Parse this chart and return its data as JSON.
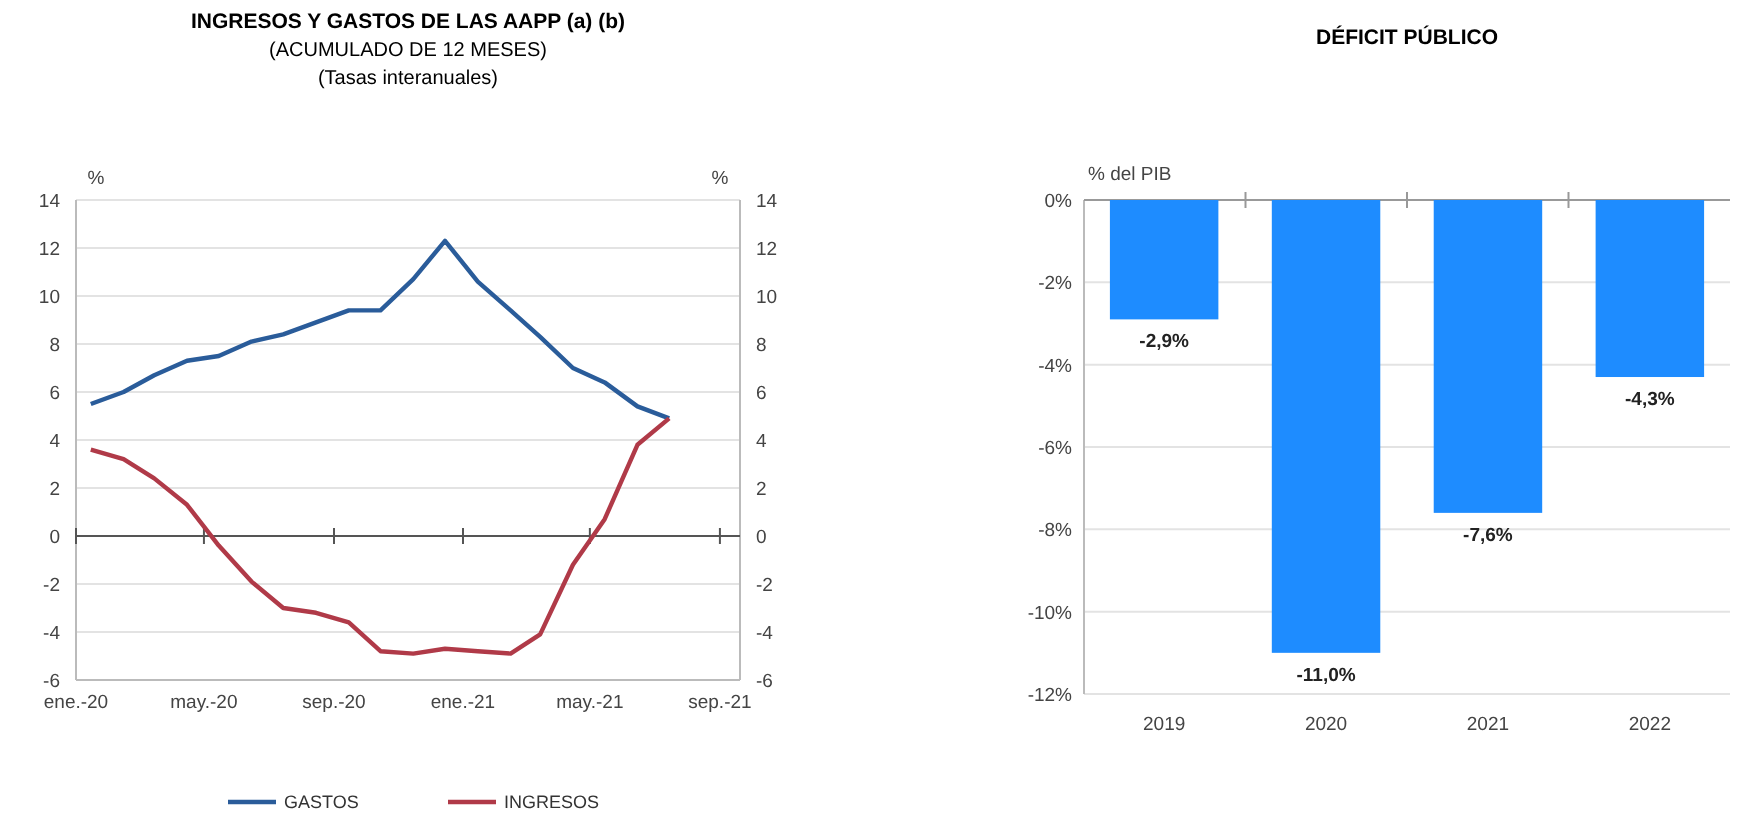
{
  "chart_data": [
    {
      "type": "line",
      "title": "INGRESOS Y GASTOS DE LAS AAPP (a) (b)",
      "subtitle": "(ACUMULADO DE 12 MESES)\n(Tasas interanuales)",
      "ylabel": "%",
      "y2label": "%",
      "x": [
        "2020-01-15",
        "2020-02-15",
        "2020-03-15",
        "2020-04-15",
        "2020-05-15",
        "2020-06-15",
        "2020-07-15",
        "2020-08-15",
        "2020-09-15",
        "2020-10-15",
        "2020-11-15",
        "2020-12-15",
        "2021-01-15",
        "2021-02-15",
        "2021-03-15",
        "2021-04-15",
        "2021-05-15",
        "2021-06-15",
        "2021-07-15"
      ],
      "series": [
        {
          "name": "GASTOS",
          "color": "#2a5c9a",
          "values": [
            5.5,
            6.0,
            6.7,
            7.3,
            7.5,
            8.1,
            8.4,
            8.9,
            9.4,
            9.4,
            10.7,
            12.3,
            10.6,
            9.4,
            8.3,
            7.0,
            6.4,
            5.4,
            4.9
          ]
        },
        {
          "name": "INGRESOS",
          "color": "#b03a48",
          "values": [
            3.6,
            3.2,
            2.4,
            1.3,
            -0.4,
            -1.9,
            -3.0,
            -3.2,
            -3.6,
            -4.8,
            -4.9,
            -4.7,
            -4.8,
            -4.9,
            -4.1,
            -1.2,
            0.7,
            3.8,
            4.9
          ]
        }
      ],
      "xlim": [
        "2020-01-01",
        "2021-09-20"
      ],
      "xticks": [
        {
          "value": "2020-01-01",
          "label": "ene.-20"
        },
        {
          "value": "2020-05-01",
          "label": "may.-20"
        },
        {
          "value": "2020-09-01",
          "label": "sep.-20"
        },
        {
          "value": "2021-01-01",
          "label": "ene.-21"
        },
        {
          "value": "2021-05-01",
          "label": "may.-21"
        },
        {
          "value": "2021-09-01",
          "label": "sep.-21"
        }
      ],
      "ylim": [
        -6,
        14
      ],
      "yticks": [
        -6,
        -4,
        -2,
        0,
        2,
        4,
        6,
        8,
        10,
        12,
        14
      ],
      "y2lim": [
        -6,
        14
      ],
      "y2ticks": [
        -6,
        -4,
        -2,
        0,
        2,
        4,
        6,
        8,
        10,
        12,
        14
      ],
      "grid": "y",
      "legend": "bottom",
      "marker": "none",
      "line_style": "solid"
    },
    {
      "type": "bar",
      "title": "DÉFICIT PÚBLICO",
      "ylabel": "% del PIB",
      "categories": [
        "2019",
        "2020",
        "2021",
        "2022"
      ],
      "values": [
        -2.9,
        -11.0,
        -7.6,
        -4.3
      ],
      "color": "#1e8cff",
      "value_labels": [
        "-2,9%",
        "-11,0%",
        "-7,6%",
        "-4,3%"
      ],
      "ylim": [
        -12,
        0
      ],
      "yticks": [
        {
          "value": -12,
          "label": "-12%"
        },
        {
          "value": -10,
          "label": "-10%"
        },
        {
          "value": -8,
          "label": "-8%"
        },
        {
          "value": -6,
          "label": "-6%"
        },
        {
          "value": -4,
          "label": "-4%"
        },
        {
          "value": -2,
          "label": "-2%"
        },
        {
          "value": 0,
          "label": "0%"
        }
      ],
      "grid": "y"
    }
  ]
}
